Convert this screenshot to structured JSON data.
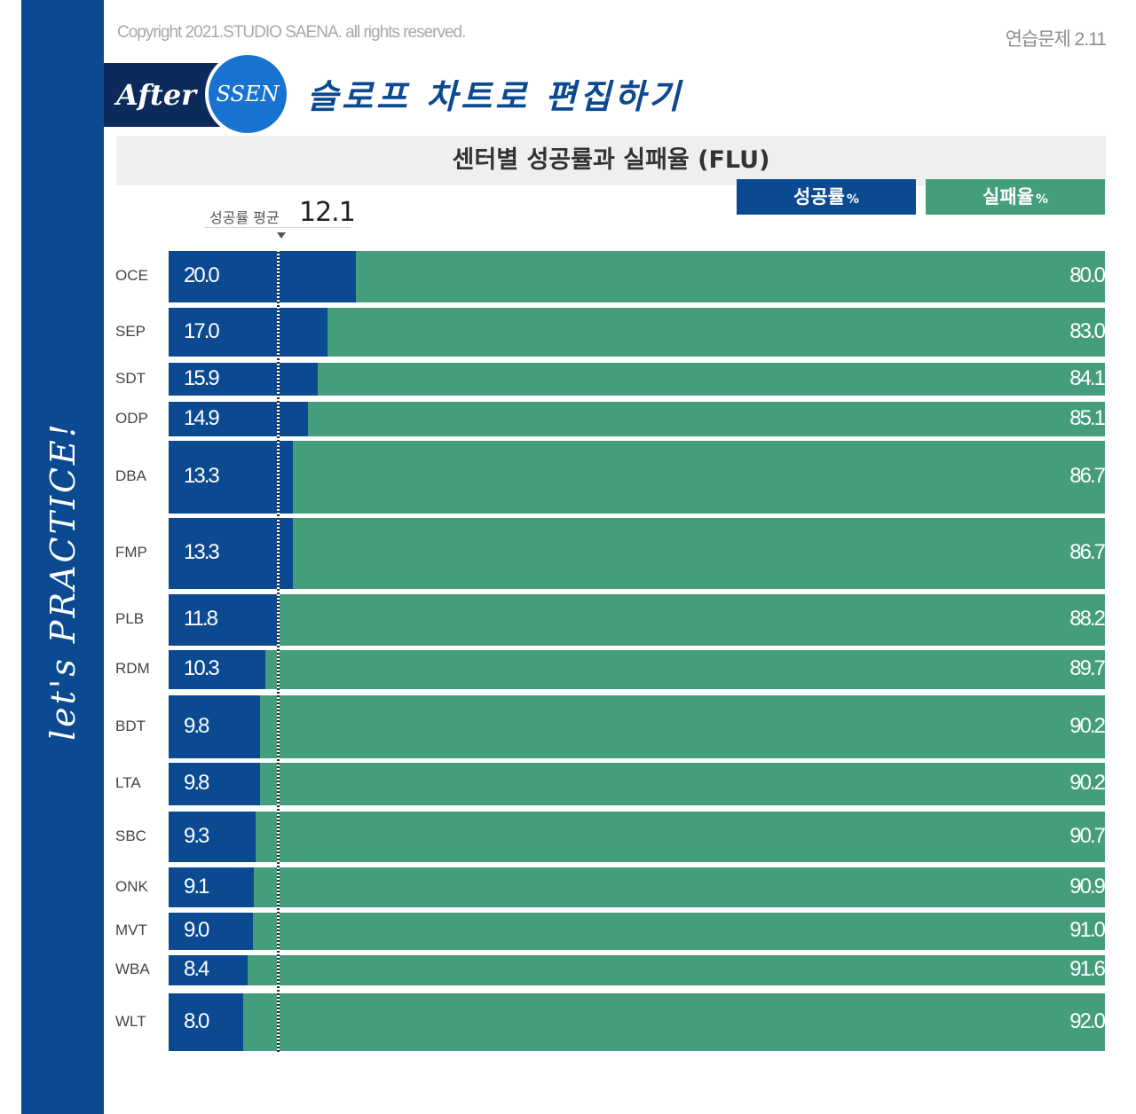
{
  "copyright": "Copyright 2021.STUDIO SAENA. all rights reserved.",
  "exercise": "연습문제 2.11",
  "badge": {
    "after": "After",
    "ssen": "SSEN"
  },
  "heading": "슬로프 차트로 편집하기",
  "side_text": "let's PRACTICE!",
  "colors": {
    "success": "#0b4a91",
    "fail": "#449e7c"
  },
  "chart_data": {
    "type": "bar",
    "stacked": true,
    "orientation": "horizontal",
    "title": "센터별 성공률과 실패율 (FLU)",
    "categories": [
      "OCE",
      "SEP",
      "SDT",
      "ODP",
      "DBA",
      "FMP",
      "PLB",
      "RDM",
      "BDT",
      "LTA",
      "SBC",
      "ONK",
      "MVT",
      "WBA",
      "WLT"
    ],
    "series": [
      {
        "name": "성공률",
        "unit": "%",
        "values": [
          20.0,
          17.0,
          15.9,
          14.9,
          13.3,
          13.3,
          11.8,
          10.3,
          9.8,
          9.8,
          9.3,
          9.1,
          9.0,
          8.4,
          8.0
        ]
      },
      {
        "name": "실패율",
        "unit": "%",
        "values": [
          80.0,
          83.0,
          84.1,
          85.1,
          86.7,
          86.7,
          88.2,
          89.7,
          90.2,
          90.2,
          90.7,
          90.9,
          91.0,
          91.6,
          92.0
        ]
      }
    ],
    "average": {
      "label": "성공률 평균",
      "value": 12.1
    },
    "xlim": [
      0,
      100
    ],
    "legend_position": "top-right"
  }
}
